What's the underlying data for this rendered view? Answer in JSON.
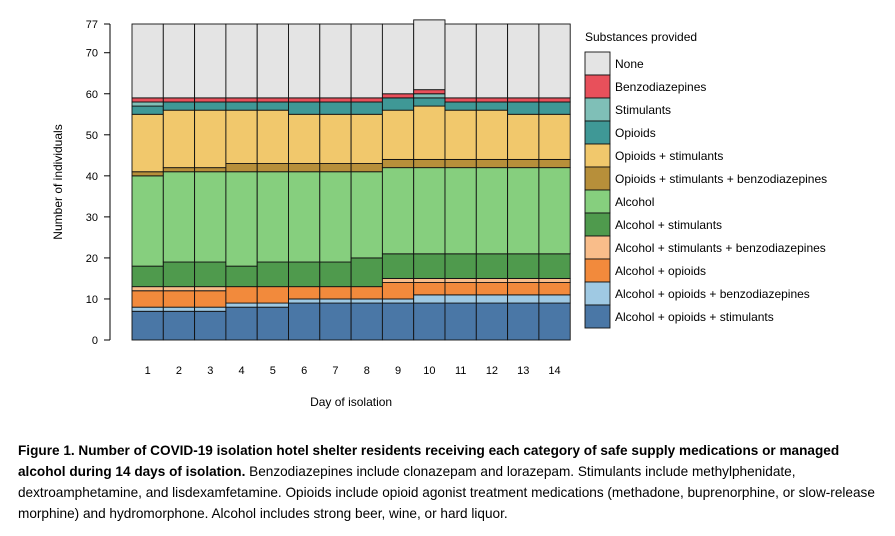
{
  "chart_data": {
    "type": "stacked-bar",
    "xlabel": "Day of isolation",
    "ylabel": "Number of individuals",
    "ylim": [
      0,
      77
    ],
    "yticks": [
      0,
      10,
      20,
      30,
      40,
      50,
      60,
      70,
      77
    ],
    "categories": [
      "1",
      "2",
      "3",
      "4",
      "5",
      "6",
      "7",
      "8",
      "9",
      "10",
      "11",
      "12",
      "13",
      "14"
    ],
    "legend_title": "Substances provided",
    "legend_position": "right",
    "series": [
      {
        "name": "Alcohol + opioids + stimulants",
        "color": "#4a77a6",
        "values": [
          7,
          7,
          7,
          8,
          8,
          9,
          9,
          9,
          9,
          9,
          9,
          9,
          9,
          9
        ]
      },
      {
        "name": "Alcohol + opioids + benzodiazepines",
        "color": "#9fc9e3",
        "values": [
          1,
          1,
          1,
          1,
          1,
          1,
          1,
          1,
          1,
          2,
          2,
          2,
          2,
          2
        ]
      },
      {
        "name": "Alcohol + opioids",
        "color": "#f28a3c",
        "values": [
          4,
          4,
          4,
          4,
          4,
          3,
          3,
          3,
          4,
          3,
          3,
          3,
          3,
          3
        ]
      },
      {
        "name": "Alcohol + stimulants + benzodiazepines",
        "color": "#f9bd8a",
        "values": [
          1,
          1,
          1,
          0,
          0,
          0,
          0,
          0,
          1,
          1,
          1,
          1,
          1,
          1
        ]
      },
      {
        "name": "Alcohol + stimulants",
        "color": "#4f9a4d",
        "values": [
          5,
          6,
          6,
          5,
          6,
          6,
          6,
          7,
          6,
          6,
          6,
          6,
          6,
          6
        ]
      },
      {
        "name": "Alcohol",
        "color": "#86cf7e",
        "values": [
          22,
          22,
          22,
          23,
          22,
          22,
          22,
          21,
          21,
          21,
          21,
          21,
          21,
          21
        ]
      },
      {
        "name": "Opioids + stimulants + benzodiazepines",
        "color": "#b78f3a",
        "values": [
          1,
          1,
          1,
          2,
          2,
          2,
          2,
          2,
          2,
          2,
          2,
          2,
          2,
          2
        ]
      },
      {
        "name": "Opioids + stimulants",
        "color": "#f1c86c",
        "values": [
          14,
          14,
          14,
          13,
          13,
          12,
          12,
          12,
          12,
          13,
          12,
          12,
          11,
          11
        ]
      },
      {
        "name": "Opioids",
        "color": "#3f9896",
        "values": [
          2,
          2,
          2,
          2,
          2,
          3,
          3,
          3,
          3,
          2,
          2,
          2,
          3,
          3
        ]
      },
      {
        "name": "Stimulants",
        "color": "#7fbfb7",
        "values": [
          1,
          0,
          0,
          0,
          0,
          0,
          0,
          0,
          0,
          1,
          0,
          0,
          0,
          0
        ]
      },
      {
        "name": "Benzodiazepines",
        "color": "#e8505b",
        "values": [
          1,
          1,
          1,
          1,
          1,
          1,
          1,
          1,
          1,
          1,
          1,
          1,
          1,
          1
        ]
      },
      {
        "name": "None",
        "color": "#e4e4e4",
        "values": [
          18,
          18,
          18,
          18,
          18,
          18,
          18,
          18,
          17,
          17,
          18,
          18,
          18,
          18
        ]
      }
    ]
  },
  "caption": {
    "bold": "Figure 1. Number of COVID-19 isolation hotel shelter residents receiving each category of safe supply medications or managed alcohol during 14 days of isolation.",
    "text": " Benzodiazepines include clonazepam and lorazepam. Stimulants include methylphenidate, dextroamphetamine, and lisdexamfetamine. Opioids include opioid agonist treatment medications (methadone, buprenorphine, or slow-release morphine) and hydromorphone. Alcohol includes strong beer, wine, or hard liquor."
  }
}
